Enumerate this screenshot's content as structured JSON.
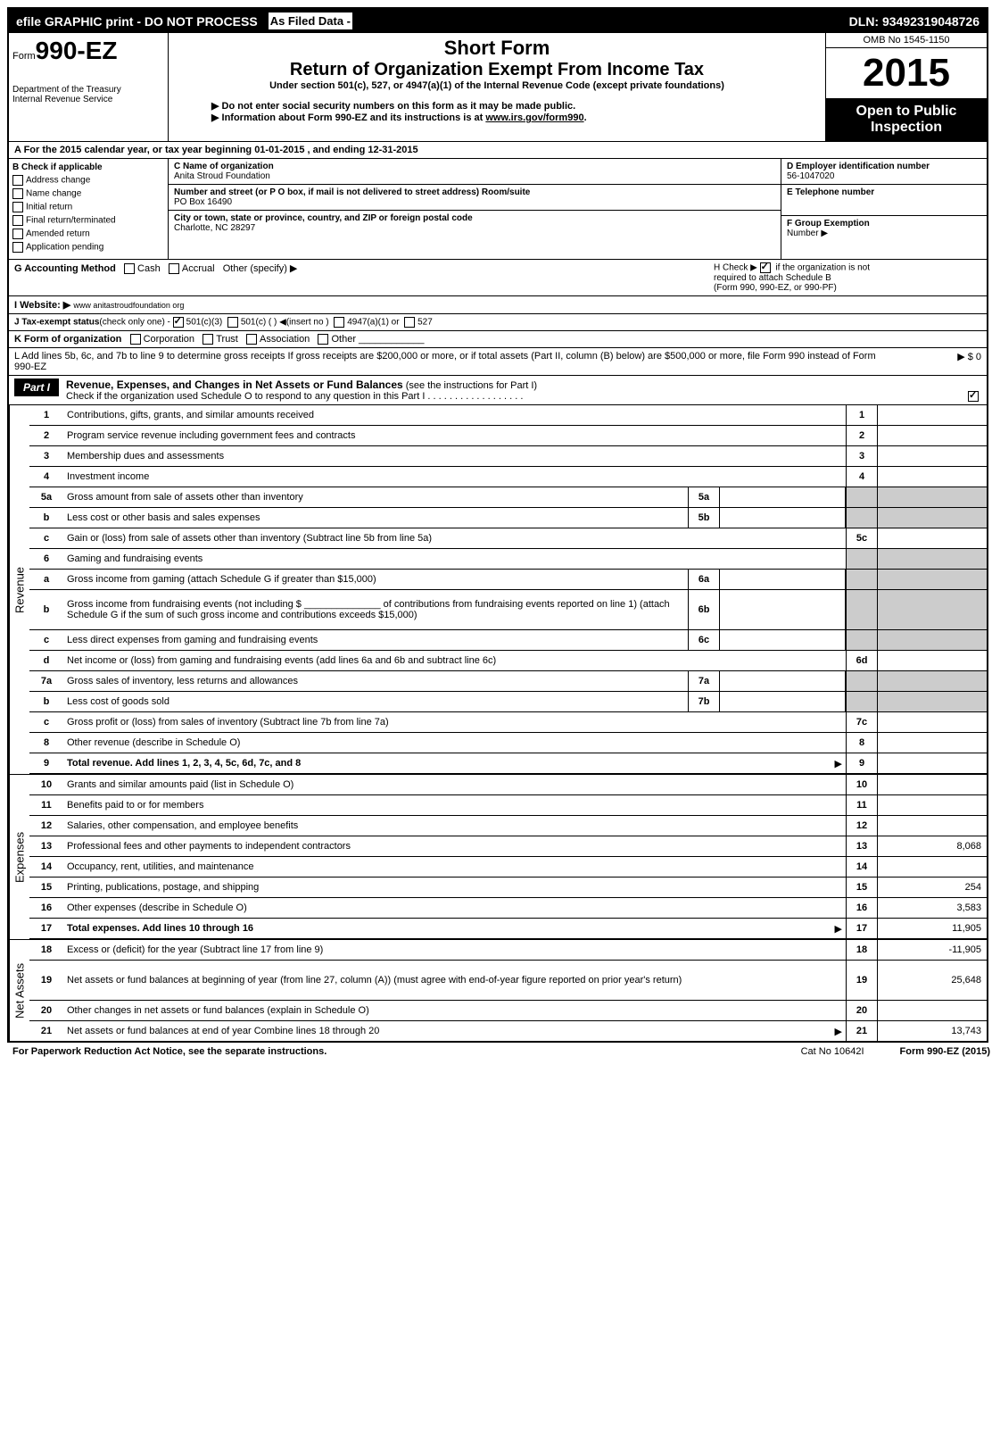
{
  "top": {
    "efile": "efile GRAPHIC print - DO NOT PROCESS",
    "filed": "As Filed Data -",
    "dln": "DLN: 93492319048726"
  },
  "header": {
    "form_prefix": "Form",
    "form_num": "990-EZ",
    "dept1": "Department of the Treasury",
    "dept2": "Internal Revenue Service",
    "short": "Short Form",
    "title": "Return of Organization Exempt From Income Tax",
    "subtitle": "Under section 501(c), 527, or 4947(a)(1) of the Internal Revenue Code (except private foundations)",
    "note1": "▶ Do not enter social security numbers on this form as it may be made public.",
    "note2": "▶ Information about Form 990-EZ and its instructions is at ",
    "note2_link": "www.irs.gov/form990",
    "omb": "OMB No 1545-1150",
    "year": "2015",
    "open1": "Open to Public",
    "open2": "Inspection"
  },
  "section_a": "A  For the 2015 calendar year, or tax year beginning 01-01-2015             , and ending 12-31-2015",
  "b": {
    "head": "B  Check if applicable",
    "items": [
      "Address change",
      "Name change",
      "Initial return",
      "Final return/terminated",
      "Amended return",
      "Application pending"
    ]
  },
  "c": {
    "name_label": "C Name of organization",
    "name": "Anita Stroud Foundation",
    "addr_label": "Number and street (or P O box, if mail is not delivered to street address) Room/suite",
    "addr": "PO Box 16490",
    "city_label": "City or town, state or province, country, and ZIP or foreign postal code",
    "city": "Charlotte, NC  28297"
  },
  "d": {
    "ein_label": "D Employer identification number",
    "ein": "56-1047020",
    "tel_label": "E Telephone number",
    "group_label": "F Group Exemption",
    "group_label2": "Number   ▶"
  },
  "g": {
    "label": "G Accounting Method",
    "cash": "Cash",
    "accrual": "Accrual",
    "other": "Other (specify) ▶"
  },
  "h": {
    "text1": "H   Check ▶",
    "text2": "if the organization is not",
    "text3": "required to attach Schedule B",
    "text4": "(Form 990, 990-EZ, or 990-PF)"
  },
  "i": {
    "label": "I Website: ▶",
    "value": "www anitastroudfoundation org"
  },
  "j": {
    "label": "J Tax-exempt status",
    "sub": "(check only one) -",
    "opt1": "501(c)(3)",
    "opt2": "501(c) (  ) ◀(insert no )",
    "opt3": "4947(a)(1) or",
    "opt4": "527"
  },
  "k": {
    "label": "K Form of organization",
    "opts": [
      "Corporation",
      "Trust",
      "Association",
      "Other"
    ]
  },
  "l": {
    "text": "L Add lines 5b, 6c, and 7b to line 9 to determine gross receipts  If gross receipts are $200,000 or more, or if total assets (Part II, column (B) below) are $500,000 or more, file Form 990 instead of Form 990-EZ",
    "amount": "▶ $ 0"
  },
  "part1": {
    "label": "Part I",
    "title": "Revenue, Expenses, and Changes in Net Assets or Fund Balances",
    "sub": "(see the instructions for Part I)",
    "check": "Check if the organization used Schedule O to respond to any question in this Part I  .  .  .  .  .  .  .  .  .  .  .  .  .  .  .  .  .  ."
  },
  "sections": {
    "revenue": "Revenue",
    "expenses": "Expenses",
    "netassets": "Net Assets"
  },
  "rows": [
    {
      "n": "1",
      "d": "Contributions, gifts, grants, and similar amounts received",
      "en": "1",
      "ev": ""
    },
    {
      "n": "2",
      "d": "Program service revenue including government fees and contracts",
      "en": "2",
      "ev": ""
    },
    {
      "n": "3",
      "d": "Membership dues and assessments",
      "en": "3",
      "ev": ""
    },
    {
      "n": "4",
      "d": "Investment income",
      "en": "4",
      "ev": ""
    },
    {
      "n": "5a",
      "d": "Gross amount from sale of assets other than inventory",
      "mn": "5a",
      "shaded": true
    },
    {
      "n": "b",
      "d": "Less  cost or other basis and sales expenses",
      "mn": "5b",
      "shaded": true
    },
    {
      "n": "c",
      "d": "Gain or (loss) from sale of assets other than inventory (Subtract line 5b from line 5a)",
      "en": "5c",
      "ev": ""
    },
    {
      "n": "6",
      "d": "Gaming and fundraising events",
      "shaded": true,
      "nomid": true
    },
    {
      "n": "a",
      "d": "Gross income from gaming (attach Schedule G if greater than $15,000)",
      "mn": "6a",
      "shaded": true
    },
    {
      "n": "b",
      "d": "Gross income from fundraising events (not including $ ______________ of contributions from fundraising events reported on line 1) (attach Schedule G if the sum of such gross income and contributions exceeds $15,000)",
      "mn": "6b",
      "shaded": true,
      "tall": true
    },
    {
      "n": "c",
      "d": "Less  direct expenses from gaming and fundraising events",
      "mn": "6c",
      "shaded": true
    },
    {
      "n": "d",
      "d": "Net income or (loss) from gaming and fundraising events (add lines 6a and 6b and subtract line 6c)",
      "en": "6d",
      "ev": ""
    },
    {
      "n": "7a",
      "d": "Gross sales of inventory, less returns and allowances",
      "mn": "7a",
      "shaded": true
    },
    {
      "n": "b",
      "d": "Less  cost of goods sold",
      "mn": "7b",
      "shaded": true
    },
    {
      "n": "c",
      "d": "Gross profit or (loss) from sales of inventory (Subtract line 7b from line 7a)",
      "en": "7c",
      "ev": ""
    },
    {
      "n": "8",
      "d": "Other revenue (describe in Schedule O)",
      "en": "8",
      "ev": ""
    },
    {
      "n": "9",
      "d": "Total revenue. Add lines 1, 2, 3, 4, 5c, 6d, 7c, and 8",
      "en": "9",
      "ev": "",
      "bold": true,
      "arrow": true
    }
  ],
  "exp_rows": [
    {
      "n": "10",
      "d": "Grants and similar amounts paid (list in Schedule O)",
      "en": "10",
      "ev": ""
    },
    {
      "n": "11",
      "d": "Benefits paid to or for members",
      "en": "11",
      "ev": ""
    },
    {
      "n": "12",
      "d": "Salaries, other compensation, and employee benefits",
      "en": "12",
      "ev": ""
    },
    {
      "n": "13",
      "d": "Professional fees and other payments to independent contractors",
      "en": "13",
      "ev": "8,068"
    },
    {
      "n": "14",
      "d": "Occupancy, rent, utilities, and maintenance",
      "en": "14",
      "ev": ""
    },
    {
      "n": "15",
      "d": "Printing, publications, postage, and shipping",
      "en": "15",
      "ev": "254"
    },
    {
      "n": "16",
      "d": "Other expenses (describe in Schedule O)",
      "en": "16",
      "ev": "3,583"
    },
    {
      "n": "17",
      "d": "Total expenses. Add lines 10 through 16",
      "en": "17",
      "ev": "11,905",
      "bold": true,
      "arrow": true
    }
  ],
  "net_rows": [
    {
      "n": "18",
      "d": "Excess or (deficit) for the year (Subtract line 17 from line 9)",
      "en": "18",
      "ev": "-11,905"
    },
    {
      "n": "19",
      "d": "Net assets or fund balances at beginning of year (from line 27, column (A)) (must agree with end-of-year figure reported on prior year's return)",
      "en": "19",
      "ev": "25,648",
      "tall": true
    },
    {
      "n": "20",
      "d": "Other changes in net assets or fund balances (explain in Schedule O)",
      "en": "20",
      "ev": ""
    },
    {
      "n": "21",
      "d": "Net assets or fund balances at end of year  Combine lines 18 through 20",
      "en": "21",
      "ev": "13,743",
      "arrow": true
    }
  ],
  "footer": {
    "left": "For Paperwork Reduction Act Notice, see the separate instructions.",
    "mid": "Cat No 10642I",
    "right": "Form 990-EZ (2015)"
  }
}
